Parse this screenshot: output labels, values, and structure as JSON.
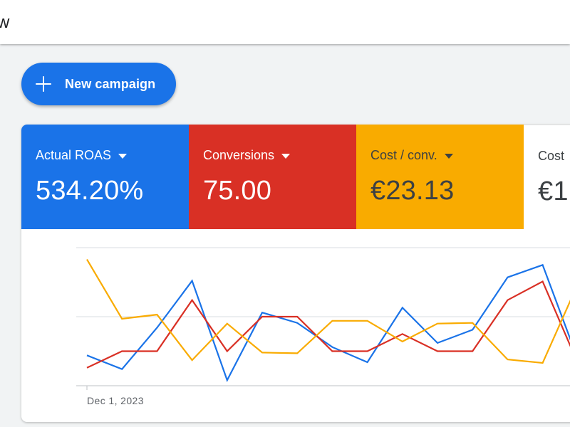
{
  "topbar": {
    "partial_text": "w"
  },
  "new_campaign": {
    "label": "New campaign"
  },
  "metrics": [
    {
      "label": "Actual ROAS",
      "value": "534.20%",
      "color": "#1a73e8"
    },
    {
      "label": "Conversions",
      "value": "75.00",
      "color": "#d93025"
    },
    {
      "label": "Cost / conv.",
      "value": "€23.13",
      "color": "#f9ab00"
    },
    {
      "label": "Cost",
      "value": "€1",
      "color": "#ffffff"
    }
  ],
  "chart_data": {
    "type": "line",
    "x_start_label": "Dec 1, 2023",
    "grid": true,
    "series": [
      {
        "color": "#1a73e8",
        "values": [
          0.44,
          0.24,
          0.84,
          1.52,
          0.08,
          1.06,
          0.91,
          0.56,
          0.34,
          1.13,
          0.62,
          0.81,
          1.57,
          1.75,
          0.39
        ]
      },
      {
        "color": "#d93025",
        "values": [
          0.26,
          0.5,
          0.5,
          1.24,
          0.5,
          1.0,
          1.0,
          0.5,
          0.5,
          0.75,
          0.5,
          0.5,
          1.24,
          1.51,
          0.33
        ]
      },
      {
        "color": "#f9ab00",
        "values": [
          1.83,
          0.97,
          1.03,
          0.37,
          0.9,
          0.48,
          0.47,
          0.94,
          0.94,
          0.64,
          0.9,
          0.91,
          0.38,
          0.33,
          1.47
        ]
      }
    ]
  }
}
